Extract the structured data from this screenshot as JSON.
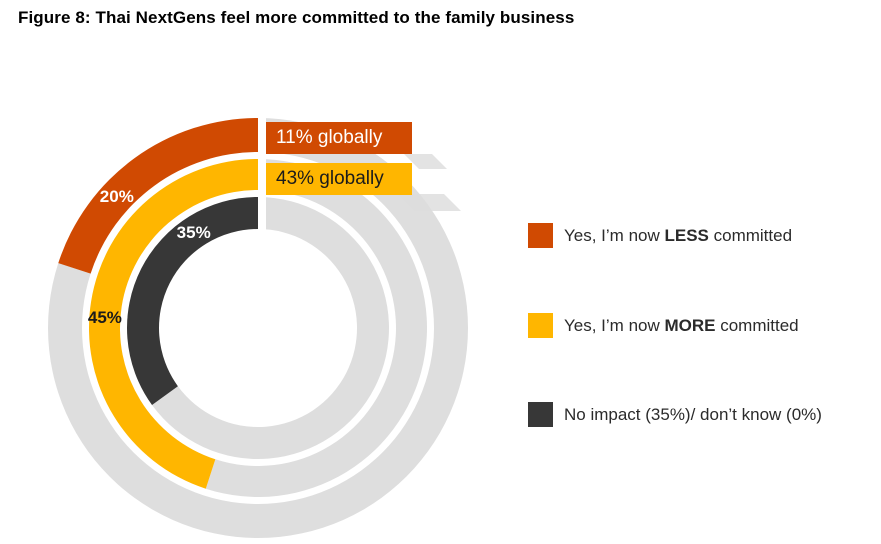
{
  "title": "Figure 8: Thai NextGens feel more committed to the family business",
  "chart_data": {
    "type": "pie",
    "variant": "concentric-donut",
    "unit": "%",
    "start_angle": "top",
    "direction": "counterclockwise",
    "track_color": "#dedede",
    "rings": [
      {
        "position": "outer",
        "name": "less-committed",
        "legend": "Yes, I’m now LESS committed",
        "value": 20,
        "label": "20%",
        "label_color": "#ffffff",
        "label_angle_deg": 47,
        "color": "#d04a02",
        "global_value": 11,
        "callout": "11% globally",
        "callout_text_color": "#ffffff"
      },
      {
        "position": "middle",
        "name": "more-committed",
        "legend": "Yes, I’m now MORE committed",
        "value": 45,
        "label": "45%",
        "label_color": "#1b1b1b",
        "label_angle_deg": 86,
        "color": "#ffb600",
        "global_value": 43,
        "callout": "43% globally",
        "callout_text_color": "#1b1b1b"
      },
      {
        "position": "inner",
        "name": "no-impact",
        "legend": "No impact (35%)/ don’t know (0%)",
        "value": 35,
        "label": "35%",
        "label_color": "#ffffff",
        "label_angle_deg": 34,
        "color": "#373737",
        "global_value": 0,
        "callout": null,
        "callout_text_color": null
      }
    ]
  },
  "legend": {
    "items": [
      {
        "prefix": "Yes, I’m now ",
        "bold": "LESS",
        "suffix": " committed",
        "color": "#d04a02"
      },
      {
        "prefix": "Yes, I’m now ",
        "bold": "MORE",
        "suffix": " committed",
        "color": "#ffb600"
      },
      {
        "prefix": "No impact (35%)/ don’t know (0%)",
        "bold": "",
        "suffix": "",
        "color": "#373737"
      }
    ]
  }
}
